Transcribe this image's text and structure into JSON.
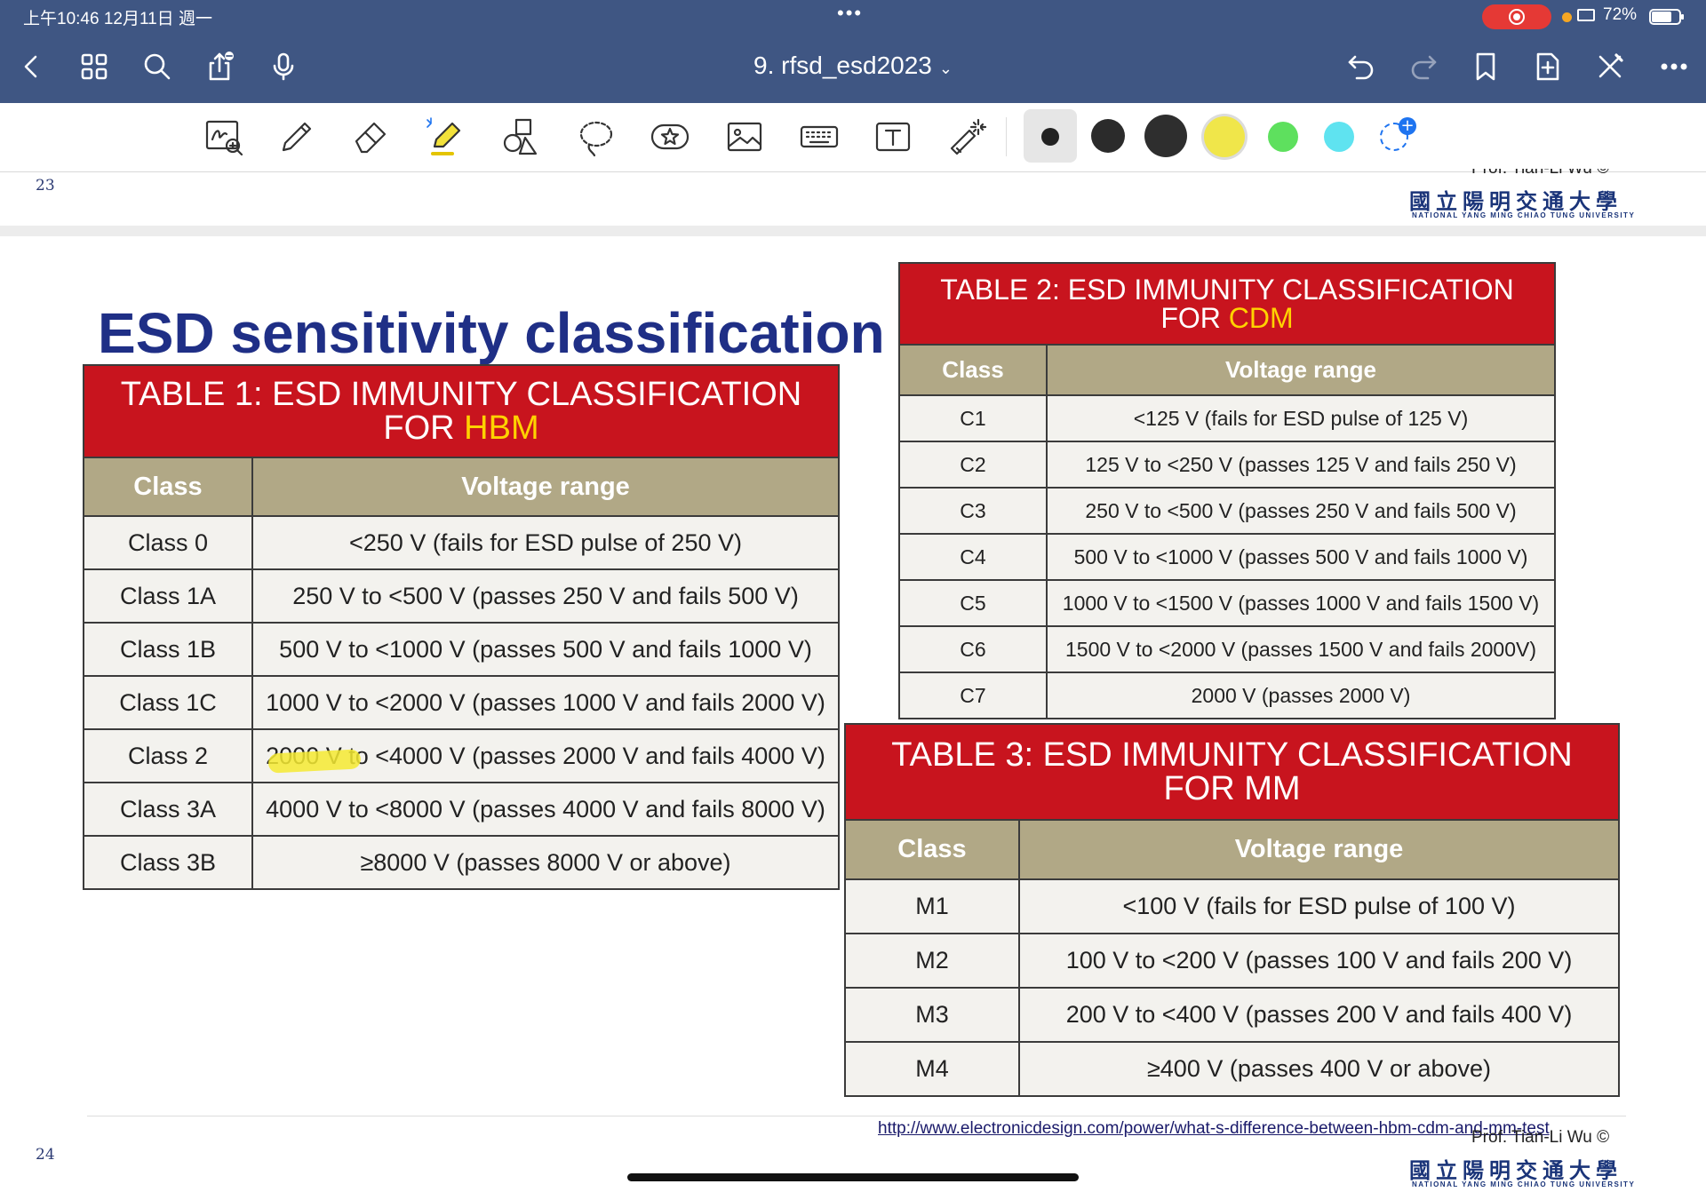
{
  "status_bar": {
    "time": "上午10:46  12月11日 週一",
    "dots": "•••",
    "battery_pct": "72%",
    "battery_level": 0.72
  },
  "nav": {
    "doc_title": "9. rfsd_esd2023",
    "title_chevron": "⌄"
  },
  "toolbar": {
    "colors": {
      "size_small": "#222222",
      "size_medium": "#2b2b2b",
      "size_large": "#2e2e2e",
      "yellow": "#f0e64a",
      "green": "#5ee05e",
      "cyan": "#5fe3f0",
      "add_color_badge": "#1e74f0"
    }
  },
  "previous_page": {
    "page_number": "23",
    "author_partial": "Prof. Tian-Li Wu ©",
    "logo_chinese": "國立陽明交通大學",
    "logo_english": "NATIONAL YANG MING CHIAO TUNG UNIVERSITY"
  },
  "slide": {
    "page_number": "24",
    "title": "ESD sensitivity classification",
    "table1": {
      "caption_line1": "TABLE 1: ESD IMMUNITY CLASSIFICATION",
      "caption_prefix": "FOR ",
      "caption_highlight": "HBM",
      "headers": [
        "Class",
        "Voltage range"
      ],
      "rows": [
        [
          "Class 0",
          "<250 V (fails for ESD pulse of 250 V)"
        ],
        [
          "Class 1A",
          "250 V to <500 V (passes 250 V and fails 500 V)"
        ],
        [
          "Class 1B",
          "500 V to <1000 V (passes 500 V and fails 1000 V)"
        ],
        [
          "Class 1C",
          "1000 V to <2000 V (passes 1000 V and fails 2000 V)"
        ],
        [
          "Class 2",
          "2000 V to <4000 V (passes 2000 V and fails 4000 V)"
        ],
        [
          "Class 3A",
          "4000 V to <8000 V (passes 4000 V and fails 8000 V)"
        ],
        [
          "Class 3B",
          "≥8000 V (passes 8000 V or above)"
        ]
      ]
    },
    "table2": {
      "caption_line1": "TABLE 2: ESD IMMUNITY CLASSIFICATION",
      "caption_prefix": "FOR ",
      "caption_highlight": "CDM",
      "headers": [
        "Class",
        "Voltage range"
      ],
      "rows": [
        [
          "C1",
          "<125 V (fails for ESD pulse of 125 V)"
        ],
        [
          "C2",
          "125 V to <250 V (passes 125 V and fails 250 V)"
        ],
        [
          "C3",
          "250 V to <500 V (passes 250 V and fails 500 V)"
        ],
        [
          "C4",
          "500 V to <1000 V (passes 500 V and fails 1000 V)"
        ],
        [
          "C5",
          "1000 V to <1500 V (passes 1000 V and fails 1500 V)"
        ],
        [
          "C6",
          "1500 V to <2000 V (passes 1500 V and fails 2000V)"
        ],
        [
          "C7",
          "2000 V (passes 2000 V)"
        ]
      ]
    },
    "table3": {
      "caption_line1": "TABLE 3: ESD IMMUNITY CLASSIFICATION",
      "caption_line2": "FOR MM",
      "headers": [
        "Class",
        "Voltage range"
      ],
      "rows": [
        [
          "M1",
          "<100 V (fails for ESD pulse of 100 V)"
        ],
        [
          "M2",
          "100 V to <200 V (passes 100 V and fails 200 V)"
        ],
        [
          "M3",
          "200 V to <400 V (passes 200 V and fails 400 V)"
        ],
        [
          "M4",
          "≥400 V (passes 400 V or above)"
        ]
      ]
    },
    "source_url": "http://www.electronicdesign.com/power/what-s-difference-between-hbm-cdm-and-mm-test",
    "author": "Prof. Tian-Li Wu ©",
    "logo_chinese": "國立陽明交通大學",
    "logo_english": "NATIONAL YANG MING CHIAO TUNG UNIVERSITY"
  }
}
